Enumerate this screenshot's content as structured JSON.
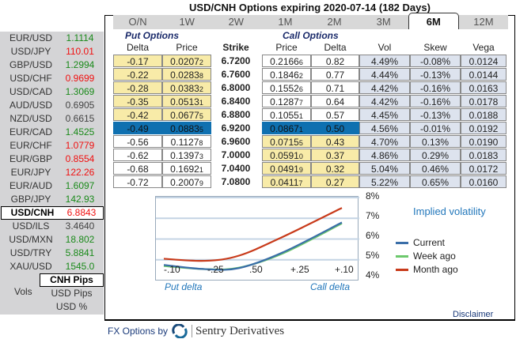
{
  "title": "USD/CNH Options expiring 2020-07-14 (182 Days)",
  "tabs": [
    "O/N",
    "1W",
    "2W",
    "1M",
    "2M",
    "3M",
    "6M",
    "12M"
  ],
  "active_tab": "6M",
  "pairs": [
    {
      "name": "EUR/USD",
      "value": "1.1114",
      "color": "green"
    },
    {
      "name": "USD/JPY",
      "value": "110.01",
      "color": "red"
    },
    {
      "name": "GBP/USD",
      "value": "1.2994",
      "color": "green"
    },
    {
      "name": "USD/CHF",
      "value": "0.9699",
      "color": "red"
    },
    {
      "name": "USD/CAD",
      "value": "1.3069",
      "color": "green"
    },
    {
      "name": "AUD/USD",
      "value": "0.6905",
      "color": "grey"
    },
    {
      "name": "NZD/USD",
      "value": "0.6615",
      "color": "grey"
    },
    {
      "name": "EUR/CAD",
      "value": "1.4525",
      "color": "green"
    },
    {
      "name": "EUR/CHF",
      "value": "1.0779",
      "color": "red"
    },
    {
      "name": "EUR/GBP",
      "value": "0.8554",
      "color": "red"
    },
    {
      "name": "EUR/JPY",
      "value": "122.26",
      "color": "red"
    },
    {
      "name": "EUR/AUD",
      "value": "1.6097",
      "color": "green"
    },
    {
      "name": "GBP/JPY",
      "value": "142.93",
      "color": "green"
    },
    {
      "name": "USD/CNH",
      "value": "6.8843",
      "color": "red",
      "selected": true
    },
    {
      "name": "USD/ILS",
      "value": "3.4640",
      "color": "grey"
    },
    {
      "name": "USD/MXN",
      "value": "18.802",
      "color": "green"
    },
    {
      "name": "USD/TRY",
      "value": "5.8841",
      "color": "green"
    },
    {
      "name": "XAU/USD",
      "value": "1545.0",
      "color": "green"
    }
  ],
  "units": {
    "label": "Vols",
    "options": [
      "CNH Pips",
      "USD Pips",
      "USD %"
    ],
    "selected": "CNH Pips"
  },
  "headers": {
    "put_group": "Put Options",
    "call_group": "Call Options",
    "delta": "Delta",
    "price": "Price",
    "strike": "Strike",
    "vol": "Vol",
    "skew": "Skew",
    "vega": "Vega"
  },
  "rows": [
    {
      "put_delta": "-0.17",
      "put_price": "0.0207",
      "put_sub": "2",
      "strike": "6.7200",
      "call_price": "0.2166",
      "call_sub": "6",
      "call_delta": "0.82",
      "vol": "4.49%",
      "skew": "-0.08%",
      "vega": "0.0124"
    },
    {
      "put_delta": "-0.22",
      "put_price": "0.0283",
      "put_sub": "8",
      "strike": "6.7600",
      "call_price": "0.1846",
      "call_sub": "2",
      "call_delta": "0.77",
      "vol": "4.44%",
      "skew": "-0.13%",
      "vega": "0.0144"
    },
    {
      "put_delta": "-0.28",
      "put_price": "0.0383",
      "put_sub": "2",
      "strike": "6.8000",
      "call_price": "0.1552",
      "call_sub": "6",
      "call_delta": "0.71",
      "vol": "4.42%",
      "skew": "-0.16%",
      "vega": "0.0163"
    },
    {
      "put_delta": "-0.35",
      "put_price": "0.0513",
      "put_sub": "1",
      "strike": "6.8400",
      "call_price": "0.1287",
      "call_sub": "7",
      "call_delta": "0.64",
      "vol": "4.42%",
      "skew": "-0.16%",
      "vega": "0.0178"
    },
    {
      "put_delta": "-0.42",
      "put_price": "0.0677",
      "put_sub": "5",
      "strike": "6.8800",
      "call_price": "0.1055",
      "call_sub": "1",
      "call_delta": "0.57",
      "vol": "4.45%",
      "skew": "-0.13%",
      "vega": "0.0188"
    },
    {
      "put_delta": "-0.49",
      "put_price": "0.0883",
      "put_sub": "5",
      "strike": "6.9200",
      "call_price": "0.0867",
      "call_sub": "1",
      "call_delta": "0.50",
      "vol": "4.56%",
      "skew": "-0.01%",
      "vega": "0.0192"
    },
    {
      "put_delta": "-0.56",
      "put_price": "0.1127",
      "put_sub": "8",
      "strike": "6.9600",
      "call_price": "0.0715",
      "call_sub": "5",
      "call_delta": "0.43",
      "vol": "4.70%",
      "skew": "0.13%",
      "vega": "0.0190"
    },
    {
      "put_delta": "-0.62",
      "put_price": "0.1397",
      "put_sub": "3",
      "strike": "7.0000",
      "call_price": "0.0591",
      "call_sub": "0",
      "call_delta": "0.37",
      "vol": "4.86%",
      "skew": "0.29%",
      "vega": "0.0183"
    },
    {
      "put_delta": "-0.68",
      "put_price": "0.1692",
      "put_sub": "1",
      "strike": "7.0400",
      "call_price": "0.0491",
      "call_sub": "9",
      "call_delta": "0.32",
      "vol": "5.04%",
      "skew": "0.46%",
      "vega": "0.0172"
    },
    {
      "put_delta": "-0.72",
      "put_price": "0.2007",
      "put_sub": "9",
      "strike": "7.0800",
      "call_price": "0.0411",
      "call_sub": "7",
      "call_delta": "0.27",
      "vol": "5.22%",
      "skew": "0.65%",
      "vega": "0.0160"
    }
  ],
  "chart_data": {
    "type": "line",
    "title": "Implied volatility",
    "x": [
      "-.10",
      "-.25",
      ".50",
      "+.25",
      "+.10"
    ],
    "xlabel_left": "Put delta",
    "xlabel_right": "Call delta",
    "yticks": [
      "8%",
      "7%",
      "6%",
      "5%",
      "4%"
    ],
    "ylim": [
      4,
      8
    ],
    "series": [
      {
        "name": "Current",
        "color": "#3a6ea8",
        "values": [
          4.75,
          4.55,
          4.6,
          5.35,
          6.8
        ]
      },
      {
        "name": "Week ago",
        "color": "#6cc86c",
        "values": [
          4.7,
          4.55,
          4.62,
          5.3,
          6.75
        ]
      },
      {
        "name": "Month ago",
        "color": "#c83a1a",
        "values": [
          5.05,
          4.95,
          5.2,
          6.1,
          7.5
        ]
      }
    ]
  },
  "disclaimer": "Disclaimer",
  "footer": {
    "prefix": "FX Options by",
    "brand": "Sentry Derivatives"
  }
}
